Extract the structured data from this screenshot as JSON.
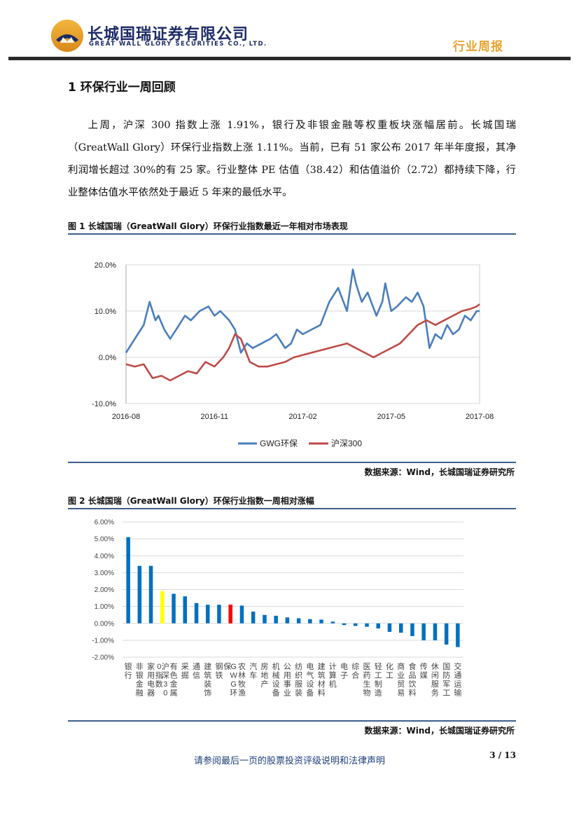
{
  "header": {
    "company_cn": "长城国瑞证券有限公司",
    "company_en": "GREAT WALL GLORY SECURITIES CO., LTD.",
    "report_type": "行业周报",
    "logo_icon": "company-logo-icon"
  },
  "section": {
    "title": "1  环保行业一周回顾",
    "paragraph": "上周，沪深 300 指数上涨 1.91%，银行及非银金融等权重板块涨幅居前。长城国瑞（GreatWall Glory）环保行业指数上涨 1.11%。当前，已有 51 家公布 2017 年半年度报，其净利润增长超过 30%的有 25 家。行业整体 PE 估值（38.42）和估值溢价（2.72）都持续下降，行业整体估值水平依然处于最近 5 年来的最低水平。"
  },
  "figure1": {
    "title": "图 1 长城国瑞（GreatWall Glory）环保行业指数最近一年相对市场表现",
    "source": "数据来源：Wind，长城国瑞证券研究所"
  },
  "figure2": {
    "title": "图 2 长城国瑞（GreatWall Glory）环保行业指数一周相对涨幅",
    "source": "数据来源：Wind，长城国瑞证券研究所"
  },
  "footer": {
    "note": "请参阅最后一页的股票投资评级说明和法律声明",
    "page": "3 / 13"
  },
  "colors": {
    "brand_navy": "#1c2a66",
    "brand_gold": "#e8a530",
    "gwg_line": "#4a7ebb",
    "hs300_line": "#be4b48",
    "bar_blue": "#0070c0",
    "bar_yellow": "#ffff00",
    "bar_red": "#ff0000"
  },
  "chart_data": [
    {
      "type": "line",
      "ylim": [
        -10,
        20
      ],
      "ytick_labels": [
        "20.0%",
        "10.0%",
        "0.0%",
        "-10.0%"
      ],
      "yticks": [
        20,
        10,
        0,
        -10
      ],
      "xtick_labels": [
        "2016-08",
        "2016-11",
        "2017-02",
        "2017-05",
        "2017-08"
      ],
      "xticks": [
        0,
        3,
        6,
        9,
        12
      ],
      "xlim": [
        0,
        12
      ],
      "series": [
        {
          "name": "GWG环保",
          "x": [
            0,
            0.2,
            0.4,
            0.6,
            0.8,
            1.0,
            1.1,
            1.3,
            1.5,
            1.8,
            2.0,
            2.2,
            2.5,
            2.8,
            3.0,
            3.2,
            3.5,
            3.7,
            3.9,
            4.1,
            4.3,
            4.6,
            4.9,
            5.1,
            5.4,
            5.6,
            5.8,
            6.0,
            6.3,
            6.6,
            6.9,
            7.2,
            7.5,
            7.7,
            7.8,
            7.9,
            8.0,
            8.2,
            8.5,
            8.7,
            8.8,
            9.0,
            9.2,
            9.5,
            9.7,
            9.9,
            10.1,
            10.3,
            10.5,
            10.7,
            10.9,
            11.1,
            11.3,
            11.5,
            11.7,
            11.9,
            12.0
          ],
          "values": [
            1,
            3,
            5,
            7,
            12,
            8,
            9,
            6,
            4,
            7,
            9,
            8,
            10,
            11,
            9,
            10,
            8,
            6,
            1,
            3,
            2,
            3,
            4,
            5,
            2,
            3,
            6,
            5,
            6,
            7,
            12,
            15,
            10,
            19,
            16,
            14,
            12,
            14,
            9,
            12,
            16,
            10,
            11,
            13,
            12,
            14,
            11,
            2,
            5,
            4,
            7,
            5,
            6,
            9,
            8,
            10,
            10
          ]
        },
        {
          "name": "沪深300",
          "x": [
            0,
            0.3,
            0.6,
            0.9,
            1.2,
            1.5,
            1.8,
            2.1,
            2.4,
            2.7,
            3.0,
            3.3,
            3.5,
            3.7,
            3.9,
            4.2,
            4.5,
            4.8,
            5.1,
            5.4,
            5.7,
            6.0,
            6.3,
            6.6,
            6.9,
            7.2,
            7.5,
            7.8,
            8.1,
            8.4,
            8.7,
            9.0,
            9.3,
            9.6,
            9.9,
            10.2,
            10.5,
            10.8,
            11.1,
            11.4,
            11.7,
            11.9,
            12.0
          ],
          "values": [
            -1.5,
            -2,
            -1.5,
            -4.5,
            -4,
            -5,
            -4,
            -3,
            -3.5,
            -1,
            -2,
            0,
            2,
            5,
            4,
            -1,
            -2,
            -2,
            -1.5,
            -1,
            0,
            0.5,
            1,
            1.5,
            2,
            2.5,
            3,
            2,
            1,
            0,
            1,
            2,
            3,
            5,
            7,
            8,
            7,
            8,
            9,
            10,
            10.5,
            11,
            11.5
          ]
        }
      ],
      "legend": [
        "GWG环保",
        "沪深300"
      ],
      "legend_position": "bottom"
    },
    {
      "type": "bar",
      "categories": [
        "银行",
        "非银金融",
        "家用电器",
        "沪深300指数",
        "有色金属",
        "采掘",
        "通信",
        "建筑装饰",
        "钢铁",
        "GWG环保",
        "农林牧渔",
        "汽车",
        "房地产",
        "机械设备",
        "公用事业",
        "纺织服装",
        "电气设备",
        "建筑材料",
        "计算机",
        "电子",
        "综合",
        "医药生物",
        "轻工制造",
        "化工",
        "商业贸易",
        "食品饮料",
        "传媒",
        "休闲服务",
        "国防军工",
        "交通运输"
      ],
      "values": [
        5.1,
        3.4,
        3.4,
        1.91,
        1.75,
        1.6,
        1.2,
        1.1,
        1.1,
        1.11,
        1.05,
        0.7,
        0.5,
        0.45,
        0.35,
        0.3,
        0.25,
        0.22,
        0.1,
        -0.1,
        -0.15,
        -0.2,
        -0.3,
        -0.5,
        -0.55,
        -0.75,
        -1.0,
        -1.0,
        -1.25,
        -1.4
      ],
      "highlight": {
        "沪深300指数": "yellow",
        "GWG环保": "red"
      },
      "ylim": [
        -2,
        6
      ],
      "yticks": [
        6,
        5,
        4,
        3,
        2,
        1,
        0,
        -1,
        -2
      ],
      "ytick_labels": [
        "6.00%",
        "5.00%",
        "4.00%",
        "3.00%",
        "2.00%",
        "1.00%",
        "0.00%",
        "-1.00%",
        "-2.00%"
      ]
    }
  ]
}
